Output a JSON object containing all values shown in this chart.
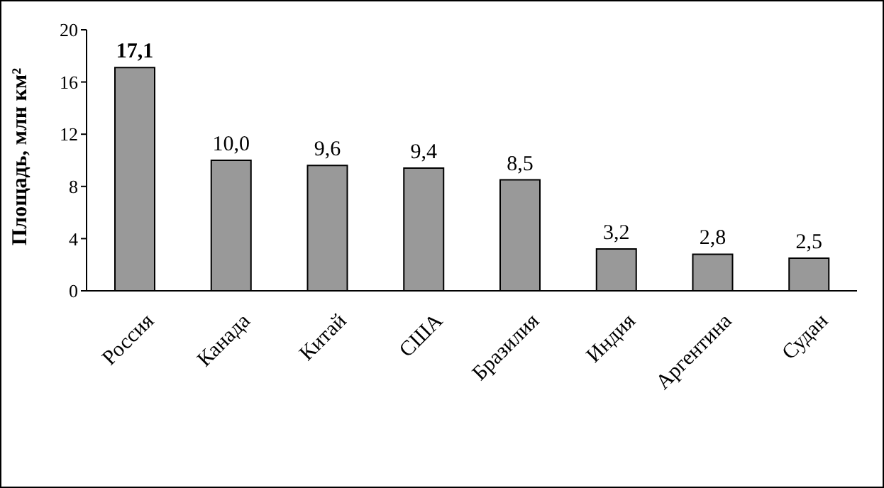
{
  "chart_data": {
    "type": "bar",
    "ylabel": "Площадь, млн км²",
    "categories": [
      "Россия",
      "Канада",
      "Китай",
      "США",
      "Бразилия",
      "Индия",
      "Аргентина",
      "Судан"
    ],
    "values": [
      17.1,
      10.0,
      9.6,
      9.4,
      8.5,
      3.2,
      2.8,
      2.5
    ],
    "value_labels": [
      "17,1",
      "10,0",
      "9,6",
      "9,4",
      "8,5",
      "3,2",
      "2,8",
      "2,5"
    ],
    "color": "#999999",
    "ylim": [
      0,
      20
    ],
    "yticks": [
      0,
      4,
      8,
      12,
      16,
      20
    ],
    "grid": false,
    "legend": false
  }
}
